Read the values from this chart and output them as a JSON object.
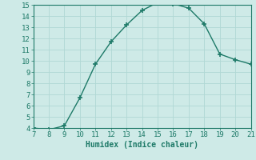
{
  "x": [
    7,
    8,
    9,
    10,
    11,
    12,
    13,
    14,
    15,
    16,
    17,
    18,
    19,
    20,
    21
  ],
  "y": [
    4.0,
    3.85,
    4.2,
    6.7,
    9.7,
    11.7,
    13.2,
    14.5,
    15.2,
    15.1,
    14.7,
    13.3,
    10.6,
    10.1,
    9.7
  ],
  "xlim": [
    7,
    21
  ],
  "ylim": [
    4,
    15
  ],
  "xticks": [
    7,
    8,
    9,
    10,
    11,
    12,
    13,
    14,
    15,
    16,
    17,
    18,
    19,
    20,
    21
  ],
  "yticks": [
    4,
    5,
    6,
    7,
    8,
    9,
    10,
    11,
    12,
    13,
    14,
    15
  ],
  "xlabel": "Humidex (Indice chaleur)",
  "line_color": "#1e7a68",
  "marker": "+",
  "bg_color": "#ceeae7",
  "grid_color": "#b0d8d4",
  "tick_color": "#1e7a68",
  "label_fontsize": 7,
  "tick_fontsize": 6.5
}
